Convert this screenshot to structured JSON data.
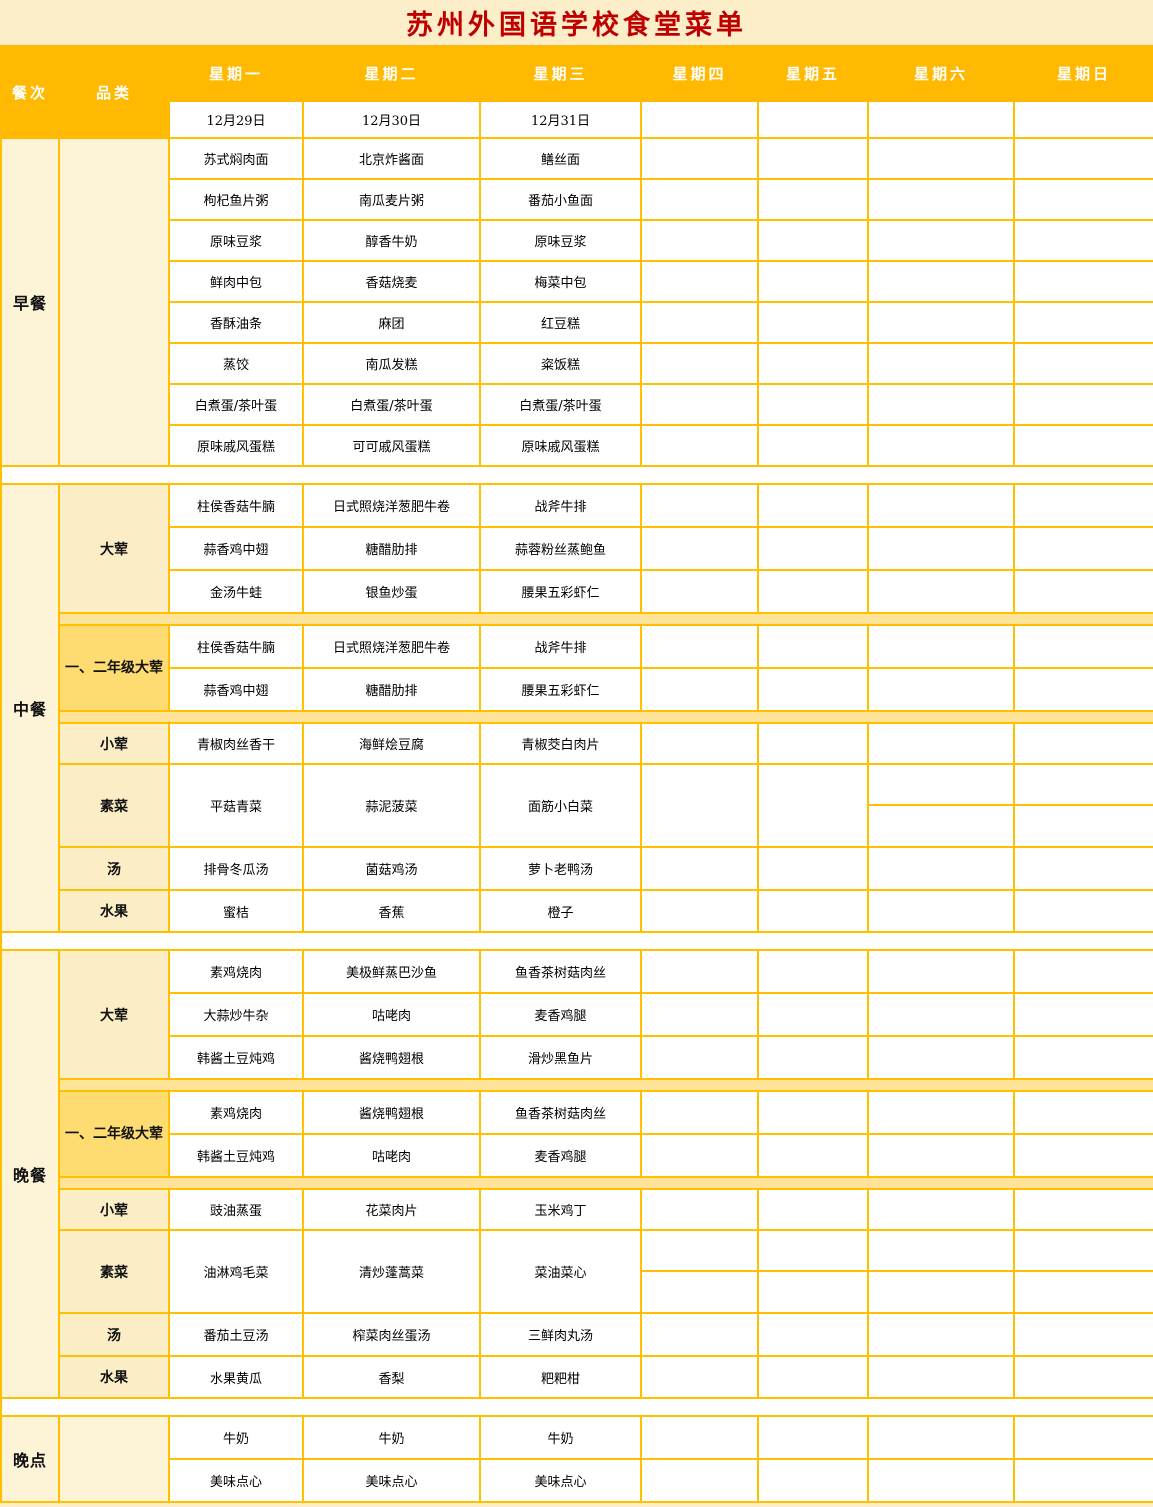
{
  "title": "苏州外国语学校食堂菜单",
  "colors": {
    "title_red": "#C00000",
    "header_orange": "#FFB900",
    "grid_orange": "#FFC000",
    "meal_column_cream": "#FDF3D7",
    "category_cream": "#FBEDC5",
    "grade12_gold": "#FFDC72",
    "strip_gold": "#FFE399"
  },
  "header": {
    "meal_col": "餐次",
    "category_col": "品类",
    "days": [
      "星期一",
      "星期二",
      "星期三",
      "星期四",
      "星期五",
      "星期六",
      "星期日"
    ],
    "dates": [
      "12月29日",
      "12月30日",
      "12月31日",
      "",
      "",
      "",
      ""
    ]
  },
  "menu": {
    "breakfast": {
      "label": "早餐",
      "items": [
        [
          "苏式焖肉面",
          "北京炸酱面",
          "鳝丝面"
        ],
        [
          "枸杞鱼片粥",
          "南瓜麦片粥",
          "番茄小鱼面"
        ],
        [
          "原味豆浆",
          "醇香牛奶",
          "原味豆浆"
        ],
        [
          "鲜肉中包",
          "香菇烧麦",
          "梅菜中包"
        ],
        [
          "香酥油条",
          "麻团",
          "红豆糕"
        ],
        [
          "蒸饺",
          "南瓜发糕",
          "粢饭糕"
        ],
        [
          "白煮蛋/茶叶蛋",
          "白煮蛋/茶叶蛋",
          "白煮蛋/茶叶蛋"
        ],
        [
          "原味戚风蛋糕",
          "可可戚风蛋糕",
          "原味戚风蛋糕"
        ]
      ]
    },
    "lunch": {
      "label": "中餐",
      "dahun": {
        "label": "大荤",
        "items": [
          [
            "柱侯香菇牛腩",
            "日式照烧洋葱肥牛卷",
            "战斧牛排"
          ],
          [
            "蒜香鸡中翅",
            "糖醋肋排",
            "蒜蓉粉丝蒸鲍鱼"
          ],
          [
            "金汤牛蛙",
            "银鱼炒蛋",
            "腰果五彩虾仁"
          ]
        ]
      },
      "grade12": {
        "label": "一、二年级大荤",
        "items": [
          [
            "柱侯香菇牛腩",
            "日式照烧洋葱肥牛卷",
            "战斧牛排"
          ],
          [
            "蒜香鸡中翅",
            "糖醋肋排",
            "腰果五彩虾仁"
          ]
        ]
      },
      "xiaohun": {
        "label": "小荤",
        "items": [
          "青椒肉丝香干",
          "海鲜烩豆腐",
          "青椒茭白肉片"
        ]
      },
      "sucai": {
        "label": "素菜",
        "items": [
          "平菇青菜",
          "蒜泥菠菜",
          "面筋小白菜"
        ]
      },
      "tang": {
        "label": "汤",
        "items": [
          "排骨冬瓜汤",
          "菌菇鸡汤",
          "萝卜老鸭汤"
        ]
      },
      "shuiguo": {
        "label": "水果",
        "items": [
          "蜜桔",
          "香蕉",
          "橙子"
        ]
      }
    },
    "dinner": {
      "label": "晚餐",
      "dahun": {
        "label": "大荤",
        "items": [
          [
            "素鸡烧肉",
            "美极鲜蒸巴沙鱼",
            "鱼香茶树菇肉丝"
          ],
          [
            "大蒜炒牛杂",
            "咕咾肉",
            "麦香鸡腿"
          ],
          [
            "韩酱土豆炖鸡",
            "酱烧鸭翅根",
            "滑炒黑鱼片"
          ]
        ]
      },
      "grade12": {
        "label": "一、二年级大荤",
        "items": [
          [
            "素鸡烧肉",
            "酱烧鸭翅根",
            "鱼香茶树菇肉丝"
          ],
          [
            "韩酱土豆炖鸡",
            "咕咾肉",
            "麦香鸡腿"
          ]
        ]
      },
      "xiaohun": {
        "label": "小荤",
        "items": [
          "豉油蒸蛋",
          "花菜肉片",
          "玉米鸡丁"
        ]
      },
      "sucai": {
        "label": "素菜",
        "items": [
          "油淋鸡毛菜",
          "清炒蓬蒿菜",
          "菜油菜心"
        ]
      },
      "tang": {
        "label": "汤",
        "items": [
          "番茄土豆汤",
          "榨菜肉丝蛋汤",
          "三鲜肉丸汤"
        ]
      },
      "shuiguo": {
        "label": "水果",
        "items": [
          "水果黄瓜",
          "香梨",
          "粑粑柑"
        ]
      }
    },
    "wandian": {
      "label": "晚点",
      "items": [
        [
          "牛奶",
          "牛奶",
          "牛奶"
        ],
        [
          "美味点心",
          "美味点心",
          "美味点心"
        ]
      ]
    }
  }
}
